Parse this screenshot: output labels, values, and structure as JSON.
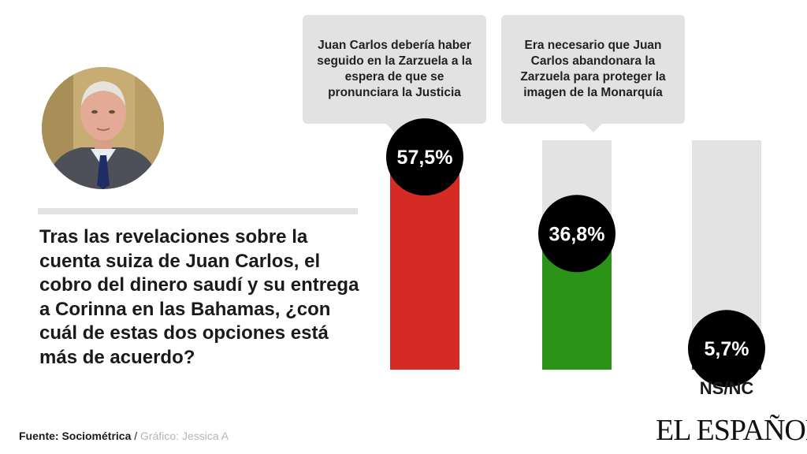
{
  "question": "Tras las revelaciones sobre la cuenta suiza de Juan Carlos, el cobro del dinero saudí y su entrega a Corinna en las Bahamas, ¿con cuál de  estas dos opciones está más de acuerdo?",
  "source": {
    "label": "Fuente: Sociométrica",
    "separator": " / ",
    "credit": "Gráfico: Jessica A"
  },
  "brand": "EL ESPAÑOL",
  "colors": {
    "track": "#e3e3e3",
    "circle": "#000000",
    "circle_text": "#ffffff"
  },
  "chart_data": {
    "type": "bar",
    "categories": [
      "Juan Carlos debería haber seguido en la Zarzuela a la espera de que se pronunciara la Justicia",
      "Era necesario que Juan Carlos abandonara la Zarzuela para proteger la imagen de la Monarquía",
      "NS/NC"
    ],
    "values": [
      57.5,
      36.8,
      5.7
    ],
    "value_labels": [
      "57,5%",
      "36,8%",
      "5,7%"
    ],
    "bar_colors": [
      "#d42c24",
      "#2b9418",
      "#444444"
    ],
    "ylim": [
      0,
      100
    ]
  }
}
